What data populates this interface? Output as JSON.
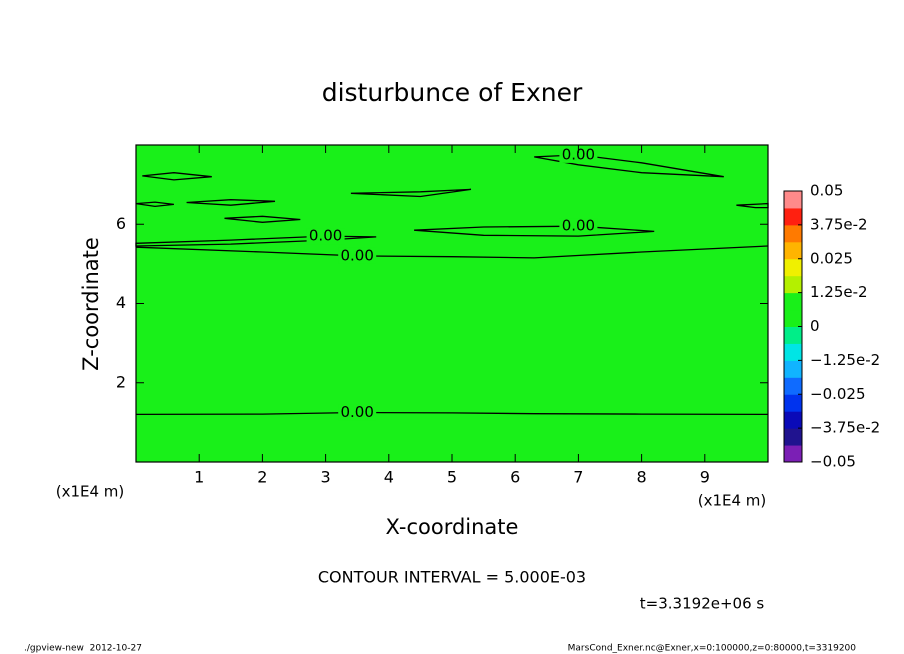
{
  "chart_data": {
    "type": "contour",
    "title": "disturbunce of Exner",
    "xlabel": "X-coordinate",
    "ylabel": "Z-coordinate",
    "x_unit_label": "(x1E4 m)",
    "xlim": [
      0,
      10
    ],
    "ylim": [
      0,
      8
    ],
    "xticks": [
      1,
      2,
      3,
      4,
      5,
      6,
      7,
      8,
      9
    ],
    "yticks": [
      2,
      4,
      6
    ],
    "fill_color": "#19f019",
    "line_color": "#000000",
    "contours": [
      {
        "label": "0.00",
        "x": [
          0,
          2,
          3.5,
          5,
          6.3,
          8,
          10
        ],
        "y": [
          1.2,
          1.21,
          1.25,
          1.24,
          1.22,
          1.21,
          1.2
        ]
      },
      {
        "label": "0.00",
        "x": [
          0,
          2,
          3.5,
          5,
          6.3,
          8,
          10
        ],
        "y": [
          5.42,
          5.3,
          5.2,
          5.18,
          5.15,
          5.3,
          5.45
        ]
      },
      {
        "label": "0.00",
        "closed": true,
        "x": [
          0,
          1.5,
          3,
          3.8,
          3,
          1.5,
          0
        ],
        "y": [
          5.52,
          5.6,
          5.7,
          5.68,
          5.6,
          5.5,
          5.45
        ]
      },
      {
        "label": "0.00",
        "closed": true,
        "x": [
          4.4,
          5.5,
          7,
          8.2,
          7,
          5.5
        ],
        "y": [
          5.85,
          5.93,
          5.95,
          5.82,
          5.7,
          5.72
        ]
      },
      {
        "label": "0.00",
        "closed": true,
        "x": [
          6.3,
          7,
          8,
          9.3,
          8,
          7
        ],
        "y": [
          7.7,
          7.75,
          7.55,
          7.2,
          7.3,
          7.5
        ]
      },
      {
        "closed": true,
        "x": [
          0.1,
          0.6,
          1.2,
          0.6
        ],
        "y": [
          7.22,
          7.3,
          7.2,
          7.12
        ]
      },
      {
        "closed": true,
        "x": [
          0,
          0.3,
          0.6,
          0.3
        ],
        "y": [
          6.52,
          6.56,
          6.5,
          6.45
        ]
      },
      {
        "closed": true,
        "x": [
          0.8,
          1.5,
          2.2,
          1.5
        ],
        "y": [
          6.55,
          6.62,
          6.58,
          6.48
        ]
      },
      {
        "closed": true,
        "x": [
          1.4,
          2,
          2.6,
          2
        ],
        "y": [
          6.15,
          6.2,
          6.12,
          6.05
        ]
      },
      {
        "closed": true,
        "x": [
          3.4,
          4.5,
          5.3,
          4.5
        ],
        "y": [
          6.78,
          6.82,
          6.88,
          6.7
        ]
      },
      {
        "closed": true,
        "x": [
          9.5,
          10,
          10,
          9.8
        ],
        "y": [
          6.48,
          6.52,
          6.42,
          6.42
        ]
      }
    ],
    "colorbar": {
      "lim": [
        -0.05,
        0.05
      ],
      "ticks": [
        0.05,
        {
          "value": 0.0375,
          "label": "3.75e-2"
        },
        0.025,
        {
          "value": 0.0125,
          "label": "1.25e-2"
        },
        0,
        {
          "value": -0.0125,
          "label": "−1.25e-2"
        },
        {
          "value": -0.025,
          "label": "−0.025"
        },
        {
          "value": -0.0375,
          "label": "−3.75e-2"
        },
        {
          "value": -0.05,
          "label": "−0.05"
        }
      ],
      "colors": [
        "#7b1fb5",
        "#20138f",
        "#0a0ab8",
        "#0033ee",
        "#0f6bff",
        "#11b4ff",
        "#00e5e5",
        "#00ee88",
        "#19f019",
        "#19f019",
        "#b4f000",
        "#f0f000",
        "#ffb400",
        "#ff7a00",
        "#ff2010",
        "#ff8a8a"
      ]
    },
    "contour_interval": "CONTOUR INTERVAL = 5.000E-03",
    "time_label": "t=3.3192e+06 s",
    "footer_left": "./gpview-new  2012-10-27",
    "footer_right": "MarsCond_Exner.nc@Exner,x=0:100000,z=0:80000,t=3319200"
  }
}
